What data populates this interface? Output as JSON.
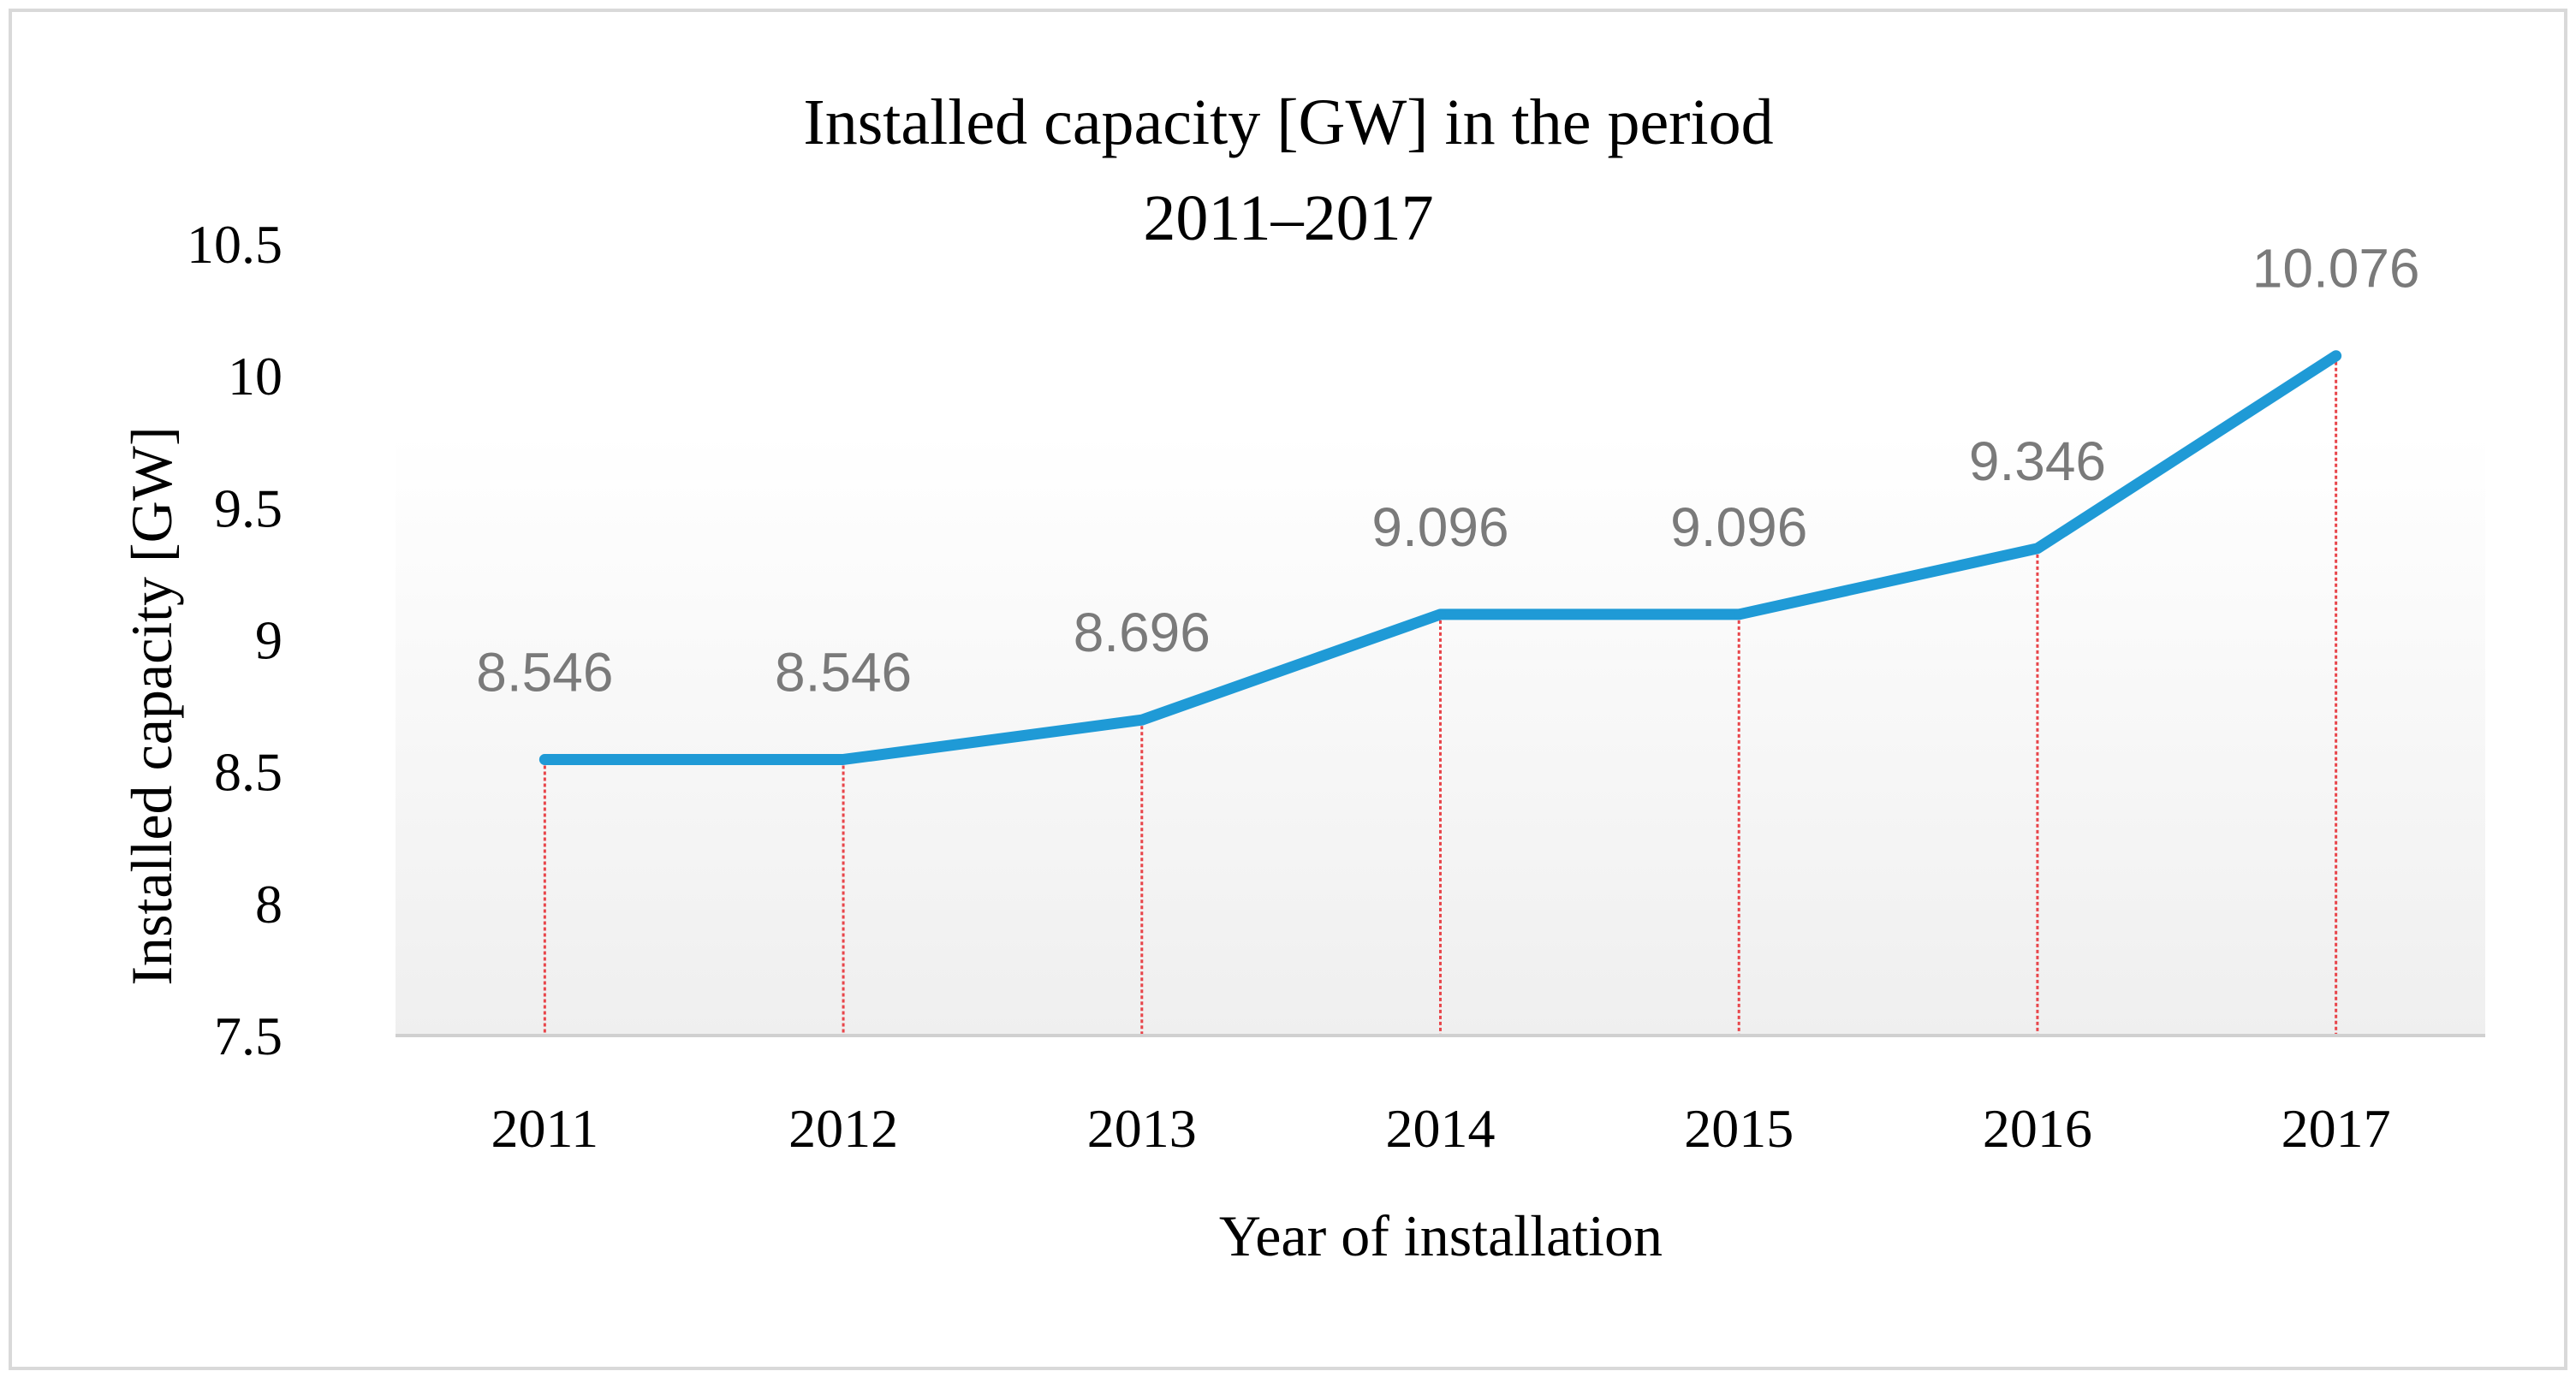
{
  "chart_data": {
    "type": "line",
    "title_lines": [
      "Installed capacity [GW] in the period",
      "2011–2017"
    ],
    "xlabel": "Year of installation",
    "ylabel": "Installed capacity [GW]",
    "categories": [
      "2011",
      "2012",
      "2013",
      "2014",
      "2015",
      "2016",
      "2017"
    ],
    "series": [
      {
        "name": "Installed capacity [GW]",
        "values": [
          8.546,
          8.546,
          8.696,
          9.096,
          9.096,
          9.346,
          10.076
        ],
        "labels": [
          "8.546",
          "8.546",
          "8.696",
          "9.096",
          "9.096",
          "9.346",
          "10.076"
        ]
      }
    ],
    "ylim": [
      7.5,
      10.5
    ],
    "yticks": [
      "7.5",
      "8",
      "8.5",
      "9",
      "9.5",
      "10",
      "10.5"
    ],
    "grid": false,
    "drop_lines": true,
    "legend": "none",
    "colors": {
      "line": "#1f9ad6",
      "drop_line": "#e8454a",
      "axis": "#d0d0d0",
      "label_text": "#7a7a7a",
      "text": "#000000",
      "frame": "#d9d9d9",
      "plot_bg_top": "#ffffff",
      "plot_bg_bottom": "#efefef"
    }
  }
}
